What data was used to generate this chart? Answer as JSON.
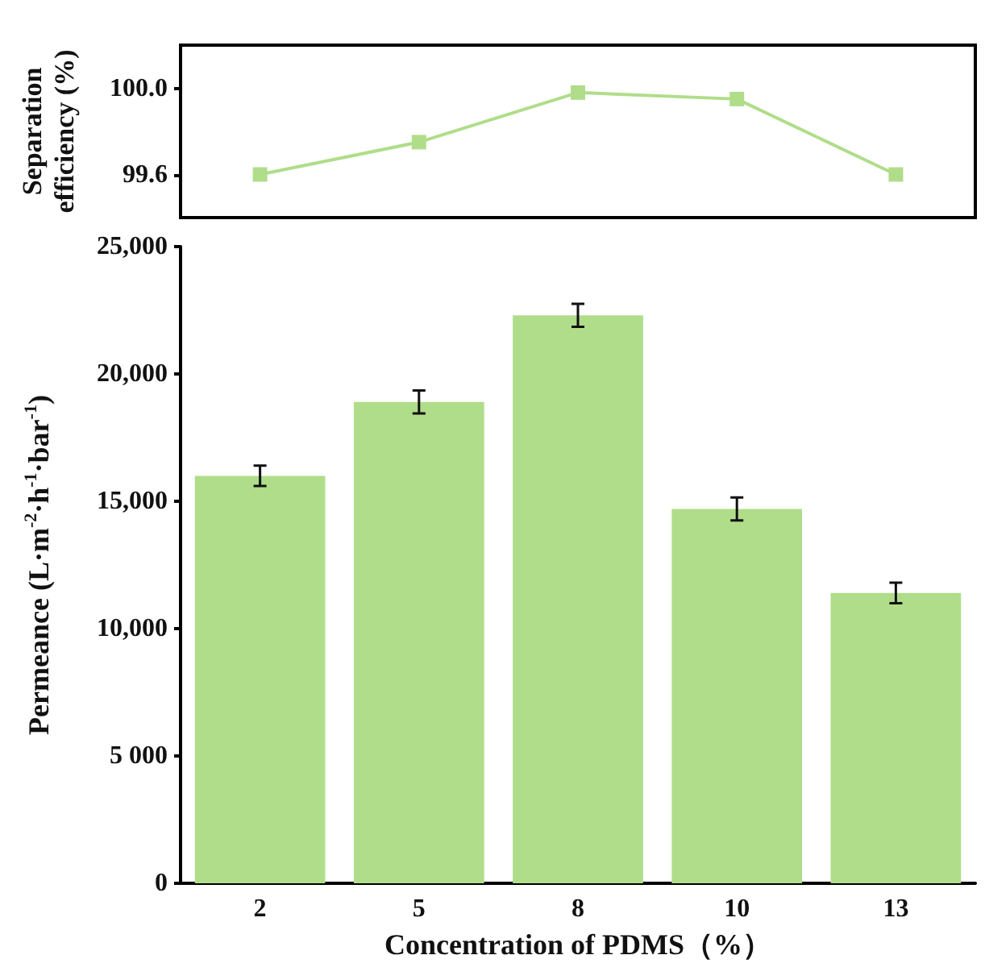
{
  "chart_data": [
    {
      "type": "line",
      "categories": [
        "2",
        "5",
        "8",
        "10",
        "13"
      ],
      "ylabel": "Separation efficiency (%)",
      "series": [
        {
          "color": "#b0dd8a",
          "values": [
            99.6,
            99.75,
            99.98,
            99.95,
            99.6
          ]
        }
      ],
      "ylim": [
        99.4,
        100.2
      ],
      "yticks": [
        {
          "value": 99.6,
          "label": "99.6"
        },
        {
          "value": 100,
          "label": "100.0"
        }
      ],
      "tick_labels": "y",
      "marker": "square",
      "grid": false
    },
    {
      "type": "bar",
      "categories": [
        "2",
        "5",
        "8",
        "10",
        "13"
      ],
      "xlabel": "Concentration of PDMS（%）",
      "ylabel": "Permeance (L·m$^{-2}$·h$^{-1}$·bar$^{-1}$)",
      "series": [
        {
          "color": "#b0dd8a",
          "values": [
            16000,
            18900,
            22300,
            14700,
            11400
          ],
          "errors": [
            400,
            450,
            450,
            450,
            400
          ]
        }
      ],
      "ylim": [
        0,
        25000
      ],
      "yticks": [
        0,
        {
          "value": 5000,
          "label": "5 000"
        },
        {
          "value": 10000,
          "label": "10,000"
        },
        {
          "value": 15000,
          "label": "15,000"
        },
        {
          "value": 20000,
          "label": "20,000"
        },
        {
          "value": 25000,
          "label": "25,000"
        }
      ],
      "grid": false
    }
  ]
}
